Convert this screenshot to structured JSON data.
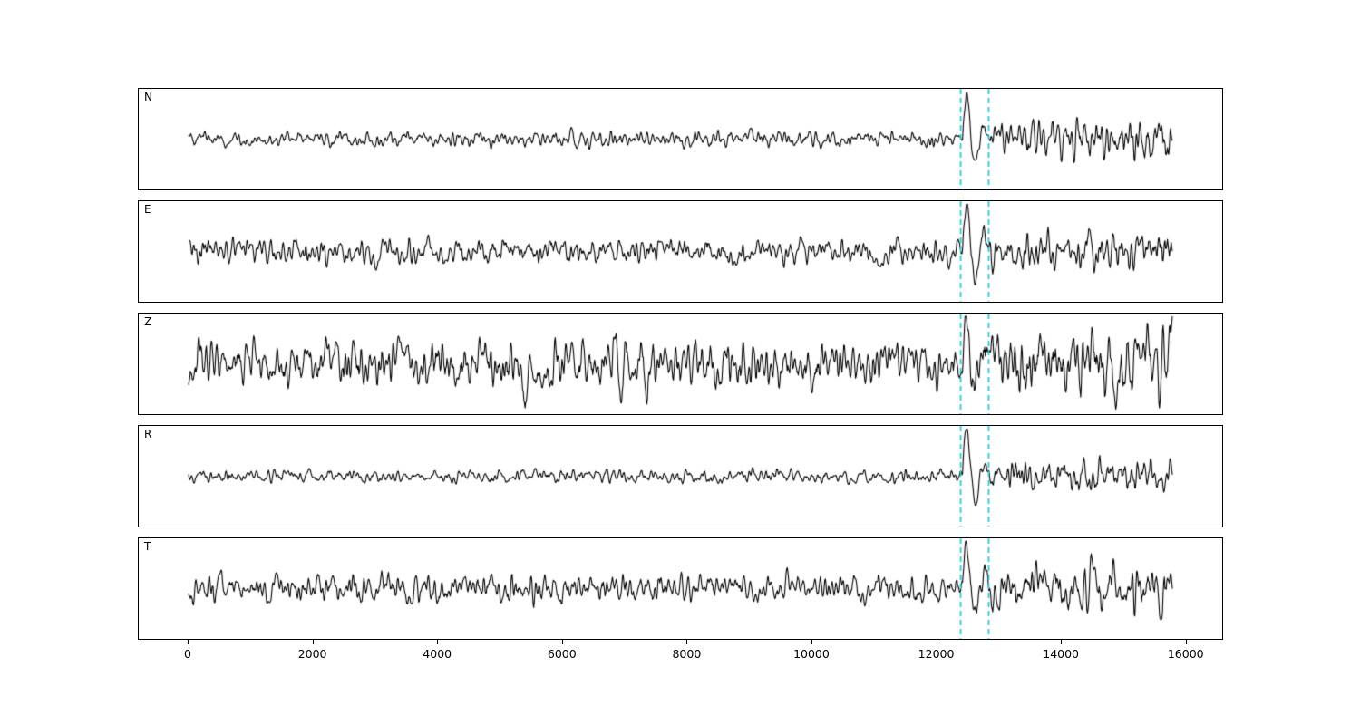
{
  "chart_data": {
    "type": "line",
    "title": "",
    "xlabel": "",
    "ylabel": "",
    "legend": null,
    "grid": false,
    "x_range": [
      -800,
      16600
    ],
    "x_ticks": [
      0,
      2000,
      4000,
      6000,
      8000,
      10000,
      12000,
      14000,
      16000
    ],
    "y_ticks": [],
    "trace_x_start": 0,
    "trace_x_end": 15800,
    "event_x": 12430,
    "pick_window": [
      12400,
      12850
    ],
    "trace_color": "#000000",
    "pick_line_color": "#2ec8d8",
    "background_color": "#ffffff",
    "panels": [
      {
        "label": "N",
        "noise_amp": 7,
        "coda_amp": 15,
        "event_amp": 62,
        "seed": 11,
        "spikes": []
      },
      {
        "label": "E",
        "noise_amp": 12,
        "coda_amp": 16,
        "event_amp": 58,
        "seed": 22,
        "spikes": []
      },
      {
        "label": "Z",
        "noise_amp": 21,
        "coda_amp": 26,
        "event_amp": 46,
        "seed": 33,
        "spikes": [
          {
            "x": 5350,
            "amp": -48
          },
          {
            "x": 6800,
            "amp": 52
          },
          {
            "x": 7300,
            "amp": -40
          },
          {
            "x": 2150,
            "amp": 28
          }
        ]
      },
      {
        "label": "R",
        "noise_amp": 6,
        "coda_amp": 13,
        "event_amp": 64,
        "seed": 44,
        "spikes": []
      },
      {
        "label": "T",
        "noise_amp": 13,
        "coda_amp": 19,
        "event_amp": 58,
        "seed": 55,
        "spikes": []
      }
    ]
  }
}
